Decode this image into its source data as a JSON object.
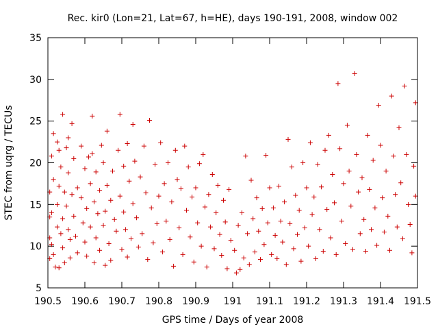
{
  "chart_data": {
    "type": "scatter",
    "title": "Rec. kir0 (Lon=21, Lat=67, h=HE), days 190-191, 2008, window 002",
    "xlabel": "GPS time / Days of year 2008",
    "ylabel": "STEC from uqrg / TECUs",
    "xlim": [
      190.5,
      191.5
    ],
    "ylim": [
      5,
      35
    ],
    "x_ticks": [
      190.5,
      190.6,
      190.7,
      190.8,
      190.9,
      191,
      191.1,
      191.2,
      191.3,
      191.4,
      191.5
    ],
    "x_tick_labels": [
      "190.5",
      "190.6",
      "190.7",
      "190.8",
      "190.9",
      "191",
      "191.1",
      "191.2",
      "191.3",
      "191.4",
      "191.5"
    ],
    "y_ticks": [
      5,
      10,
      15,
      20,
      25,
      30,
      35
    ],
    "y_tick_labels": [
      "5",
      "10",
      "15",
      "20",
      "25",
      "30",
      "35"
    ],
    "grid": false,
    "marker": "plus",
    "color": "#cc0000",
    "series": [
      {
        "points": [
          [
            190.505,
            16.5
          ],
          [
            190.505,
            13.5
          ],
          [
            190.505,
            11.0
          ],
          [
            190.505,
            8.5
          ],
          [
            190.51,
            20.8
          ],
          [
            190.51,
            14.0
          ],
          [
            190.51,
            10.2
          ],
          [
            190.515,
            23.5
          ],
          [
            190.515,
            18.0
          ],
          [
            190.515,
            9.0
          ],
          [
            190.52,
            7.5
          ],
          [
            190.525,
            22.5
          ],
          [
            190.525,
            15.0
          ],
          [
            190.525,
            12.3
          ],
          [
            190.53,
            21.5
          ],
          [
            190.53,
            17.2
          ],
          [
            190.53,
            7.4
          ],
          [
            190.535,
            19.5
          ],
          [
            190.535,
            11.5
          ],
          [
            190.54,
            25.8
          ],
          [
            190.54,
            13.3
          ],
          [
            190.54,
            9.8
          ],
          [
            190.545,
            16.5
          ],
          [
            190.545,
            8.0
          ],
          [
            190.55,
            21.8
          ],
          [
            190.55,
            14.8
          ],
          [
            190.555,
            23.0
          ],
          [
            190.555,
            18.8
          ],
          [
            190.555,
            12.0
          ],
          [
            190.56,
            10.8
          ],
          [
            190.56,
            8.6
          ],
          [
            190.565,
            24.7
          ],
          [
            190.565,
            16.2
          ],
          [
            190.57,
            20.5
          ],
          [
            190.57,
            13.6
          ],
          [
            190.575,
            11.2
          ],
          [
            190.58,
            17.0
          ],
          [
            190.58,
            9.2
          ],
          [
            190.59,
            22.0
          ],
          [
            190.59,
            15.8
          ],
          [
            190.595,
            12.8
          ],
          [
            190.6,
            19.3
          ],
          [
            190.6,
            10.5
          ],
          [
            190.605,
            14.5
          ],
          [
            190.605,
            8.8
          ],
          [
            190.61,
            20.7
          ],
          [
            190.615,
            17.5
          ],
          [
            190.615,
            12.3
          ],
          [
            190.62,
            25.6
          ],
          [
            190.62,
            21.1
          ],
          [
            190.625,
            15.3
          ],
          [
            190.625,
            8.0
          ],
          [
            190.63,
            18.9
          ],
          [
            190.63,
            11.0
          ],
          [
            190.635,
            13.9
          ],
          [
            190.64,
            16.7
          ],
          [
            190.64,
            9.5
          ],
          [
            190.645,
            22.1
          ],
          [
            190.65,
            20.0
          ],
          [
            190.65,
            12.5
          ],
          [
            190.655,
            14.2
          ],
          [
            190.655,
            7.7
          ],
          [
            190.66,
            23.8
          ],
          [
            190.66,
            17.3
          ],
          [
            190.665,
            10.3
          ],
          [
            190.67,
            15.5
          ],
          [
            190.67,
            8.3
          ],
          [
            190.675,
            19.0
          ],
          [
            190.68,
            13.2
          ],
          [
            190.685,
            11.8
          ],
          [
            190.69,
            21.5
          ],
          [
            190.695,
            25.8
          ],
          [
            190.695,
            16.0
          ],
          [
            190.7,
            9.6
          ],
          [
            190.705,
            19.6
          ],
          [
            190.705,
            14.1
          ],
          [
            190.71,
            12.0
          ],
          [
            190.715,
            22.3
          ],
          [
            190.715,
            8.7
          ],
          [
            190.72,
            17.8
          ],
          [
            190.725,
            10.9
          ],
          [
            190.73,
            24.6
          ],
          [
            190.73,
            15.1
          ],
          [
            190.735,
            20.2
          ],
          [
            190.74,
            13.4
          ],
          [
            190.745,
            9.9
          ],
          [
            190.75,
            18.3
          ],
          [
            190.755,
            11.5
          ],
          [
            190.76,
            22.0
          ],
          [
            190.765,
            16.4
          ],
          [
            190.77,
            8.4
          ],
          [
            190.775,
            25.1
          ],
          [
            190.78,
            14.6
          ],
          [
            190.785,
            10.4
          ],
          [
            190.79,
            19.8
          ],
          [
            190.795,
            12.7
          ],
          [
            190.8,
            16.0
          ],
          [
            190.805,
            22.4
          ],
          [
            190.81,
            9.3
          ],
          [
            190.815,
            17.5
          ],
          [
            190.82,
            13.0
          ],
          [
            190.825,
            20.0
          ],
          [
            190.83,
            10.8
          ],
          [
            190.835,
            15.3
          ],
          [
            190.84,
            7.6
          ],
          [
            190.845,
            21.5
          ],
          [
            190.85,
            18.0
          ],
          [
            190.855,
            12.2
          ],
          [
            190.86,
            16.9
          ],
          [
            190.865,
            9.0
          ],
          [
            190.87,
            22.0
          ],
          [
            190.875,
            14.3
          ],
          [
            190.88,
            19.5
          ],
          [
            190.885,
            11.1
          ],
          [
            190.89,
            15.9
          ],
          [
            190.895,
            8.1
          ],
          [
            190.9,
            17.0
          ],
          [
            190.905,
            12.8
          ],
          [
            190.91,
            19.9
          ],
          [
            190.915,
            10.0
          ],
          [
            190.92,
            21.0
          ],
          [
            190.925,
            14.7
          ],
          [
            190.93,
            7.5
          ],
          [
            190.935,
            16.2
          ],
          [
            190.94,
            12.3
          ],
          [
            190.945,
            18.6
          ],
          [
            190.95,
            9.7
          ],
          [
            190.955,
            14.0
          ],
          [
            190.96,
            17.3
          ],
          [
            190.965,
            11.4
          ],
          [
            190.97,
            8.9
          ],
          [
            190.975,
            15.5
          ],
          [
            190.98,
            12.9
          ],
          [
            190.985,
            7.3
          ],
          [
            190.99,
            16.8
          ],
          [
            190.995,
            10.7
          ],
          [
            191.005,
            9.5
          ],
          [
            191.01,
            6.8
          ],
          [
            191.015,
            12.5
          ],
          [
            191.02,
            7.2
          ],
          [
            191.025,
            14.0
          ],
          [
            191.03,
            8.6
          ],
          [
            191.035,
            20.8
          ],
          [
            191.04,
            11.5
          ],
          [
            191.045,
            7.8
          ],
          [
            191.05,
            17.9
          ],
          [
            191.055,
            13.3
          ],
          [
            191.06,
            9.3
          ],
          [
            191.065,
            15.8
          ],
          [
            191.07,
            11.8
          ],
          [
            191.075,
            8.4
          ],
          [
            191.08,
            14.5
          ],
          [
            191.085,
            10.2
          ],
          [
            191.09,
            20.9
          ],
          [
            191.095,
            12.8
          ],
          [
            191.1,
            17.0
          ],
          [
            191.105,
            9.0
          ],
          [
            191.11,
            14.6
          ],
          [
            191.115,
            11.3
          ],
          [
            191.12,
            8.5
          ],
          [
            191.125,
            17.2
          ],
          [
            191.13,
            13.0
          ],
          [
            191.135,
            10.5
          ],
          [
            191.14,
            15.3
          ],
          [
            191.145,
            7.8
          ],
          [
            191.15,
            22.8
          ],
          [
            191.155,
            12.7
          ],
          [
            191.16,
            19.5
          ],
          [
            191.165,
            9.7
          ],
          [
            191.17,
            16.1
          ],
          [
            191.175,
            11.4
          ],
          [
            191.18,
            14.3
          ],
          [
            191.185,
            8.2
          ],
          [
            191.19,
            20.0
          ],
          [
            191.195,
            12.2
          ],
          [
            191.2,
            17.0
          ],
          [
            191.205,
            10.0
          ],
          [
            191.21,
            22.4
          ],
          [
            191.215,
            13.8
          ],
          [
            191.22,
            15.9
          ],
          [
            191.225,
            8.5
          ],
          [
            191.23,
            19.8
          ],
          [
            191.235,
            12.0
          ],
          [
            191.24,
            17.1
          ],
          [
            191.245,
            9.4
          ],
          [
            191.25,
            21.5
          ],
          [
            191.255,
            14.4
          ],
          [
            191.26,
            23.3
          ],
          [
            191.265,
            11.0
          ],
          [
            191.27,
            18.6
          ],
          [
            191.275,
            15.2
          ],
          [
            191.28,
            9.0
          ],
          [
            191.285,
            29.5
          ],
          [
            191.29,
            21.7
          ],
          [
            191.295,
            13.0
          ],
          [
            191.3,
            17.5
          ],
          [
            191.305,
            10.3
          ],
          [
            191.31,
            24.5
          ],
          [
            191.315,
            19.0
          ],
          [
            191.32,
            14.8
          ],
          [
            191.325,
            9.6
          ],
          [
            191.33,
            30.7
          ],
          [
            191.335,
            21.0
          ],
          [
            191.34,
            16.5
          ],
          [
            191.345,
            11.5
          ],
          [
            191.35,
            18.2
          ],
          [
            191.355,
            13.2
          ],
          [
            191.36,
            9.4
          ],
          [
            191.365,
            23.3
          ],
          [
            191.37,
            16.8
          ],
          [
            191.375,
            12.0
          ],
          [
            191.38,
            20.3
          ],
          [
            191.385,
            14.6
          ],
          [
            191.39,
            10.1
          ],
          [
            191.395,
            26.9
          ],
          [
            191.4,
            22.1
          ],
          [
            191.405,
            15.8
          ],
          [
            191.41,
            11.7
          ],
          [
            191.415,
            19.0
          ],
          [
            191.42,
            13.6
          ],
          [
            191.425,
            9.5
          ],
          [
            191.43,
            28.0
          ],
          [
            191.435,
            20.8
          ],
          [
            191.44,
            16.2
          ],
          [
            191.445,
            12.3
          ],
          [
            191.45,
            24.2
          ],
          [
            191.455,
            17.6
          ],
          [
            191.46,
            10.9
          ],
          [
            191.465,
            29.2
          ],
          [
            191.47,
            21.0
          ],
          [
            191.475,
            15.0
          ],
          [
            191.48,
            12.6
          ],
          [
            191.485,
            9.2
          ],
          [
            191.49,
            19.6
          ],
          [
            191.495,
            27.2
          ],
          [
            191.495,
            16.0
          ]
        ]
      }
    ]
  }
}
